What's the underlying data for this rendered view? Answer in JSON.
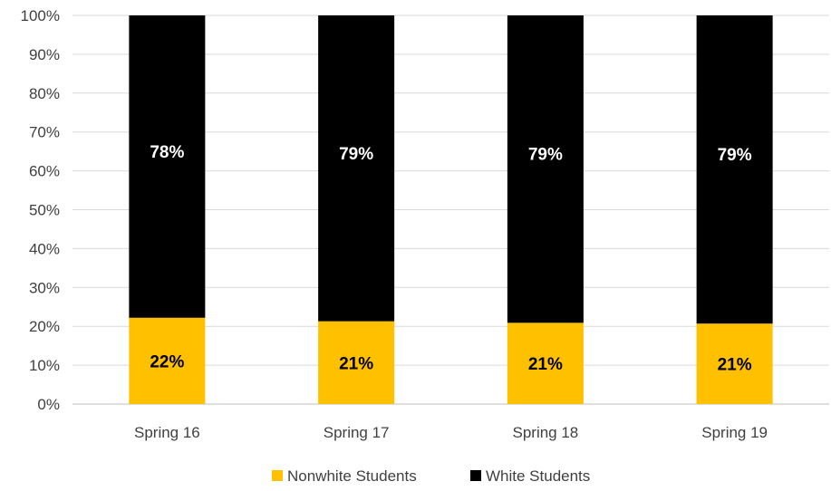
{
  "chart_data": {
    "type": "bar",
    "stacked": true,
    "categories": [
      "Spring 16",
      "Spring 17",
      "Spring 18",
      "Spring 19"
    ],
    "series": [
      {
        "name": "Nonwhite Students",
        "color": "#FFC000",
        "values": [
          22.2,
          21.3,
          20.9,
          20.7
        ],
        "labels": [
          "22%",
          "21%",
          "21%",
          "21%"
        ],
        "label_color": "#000000"
      },
      {
        "name": "White Students",
        "color": "#000000",
        "values": [
          77.8,
          78.7,
          79.1,
          79.3
        ],
        "labels": [
          "78%",
          "79%",
          "79%",
          "79%"
        ],
        "label_color": "#ffffff"
      }
    ],
    "y_ticks": [
      "0%",
      "10%",
      "20%",
      "30%",
      "40%",
      "50%",
      "60%",
      "70%",
      "80%",
      "90%",
      "100%"
    ],
    "ylim": [
      0,
      100
    ],
    "grid": true,
    "legend": "bottom",
    "title": "",
    "xlabel": "",
    "ylabel": ""
  }
}
